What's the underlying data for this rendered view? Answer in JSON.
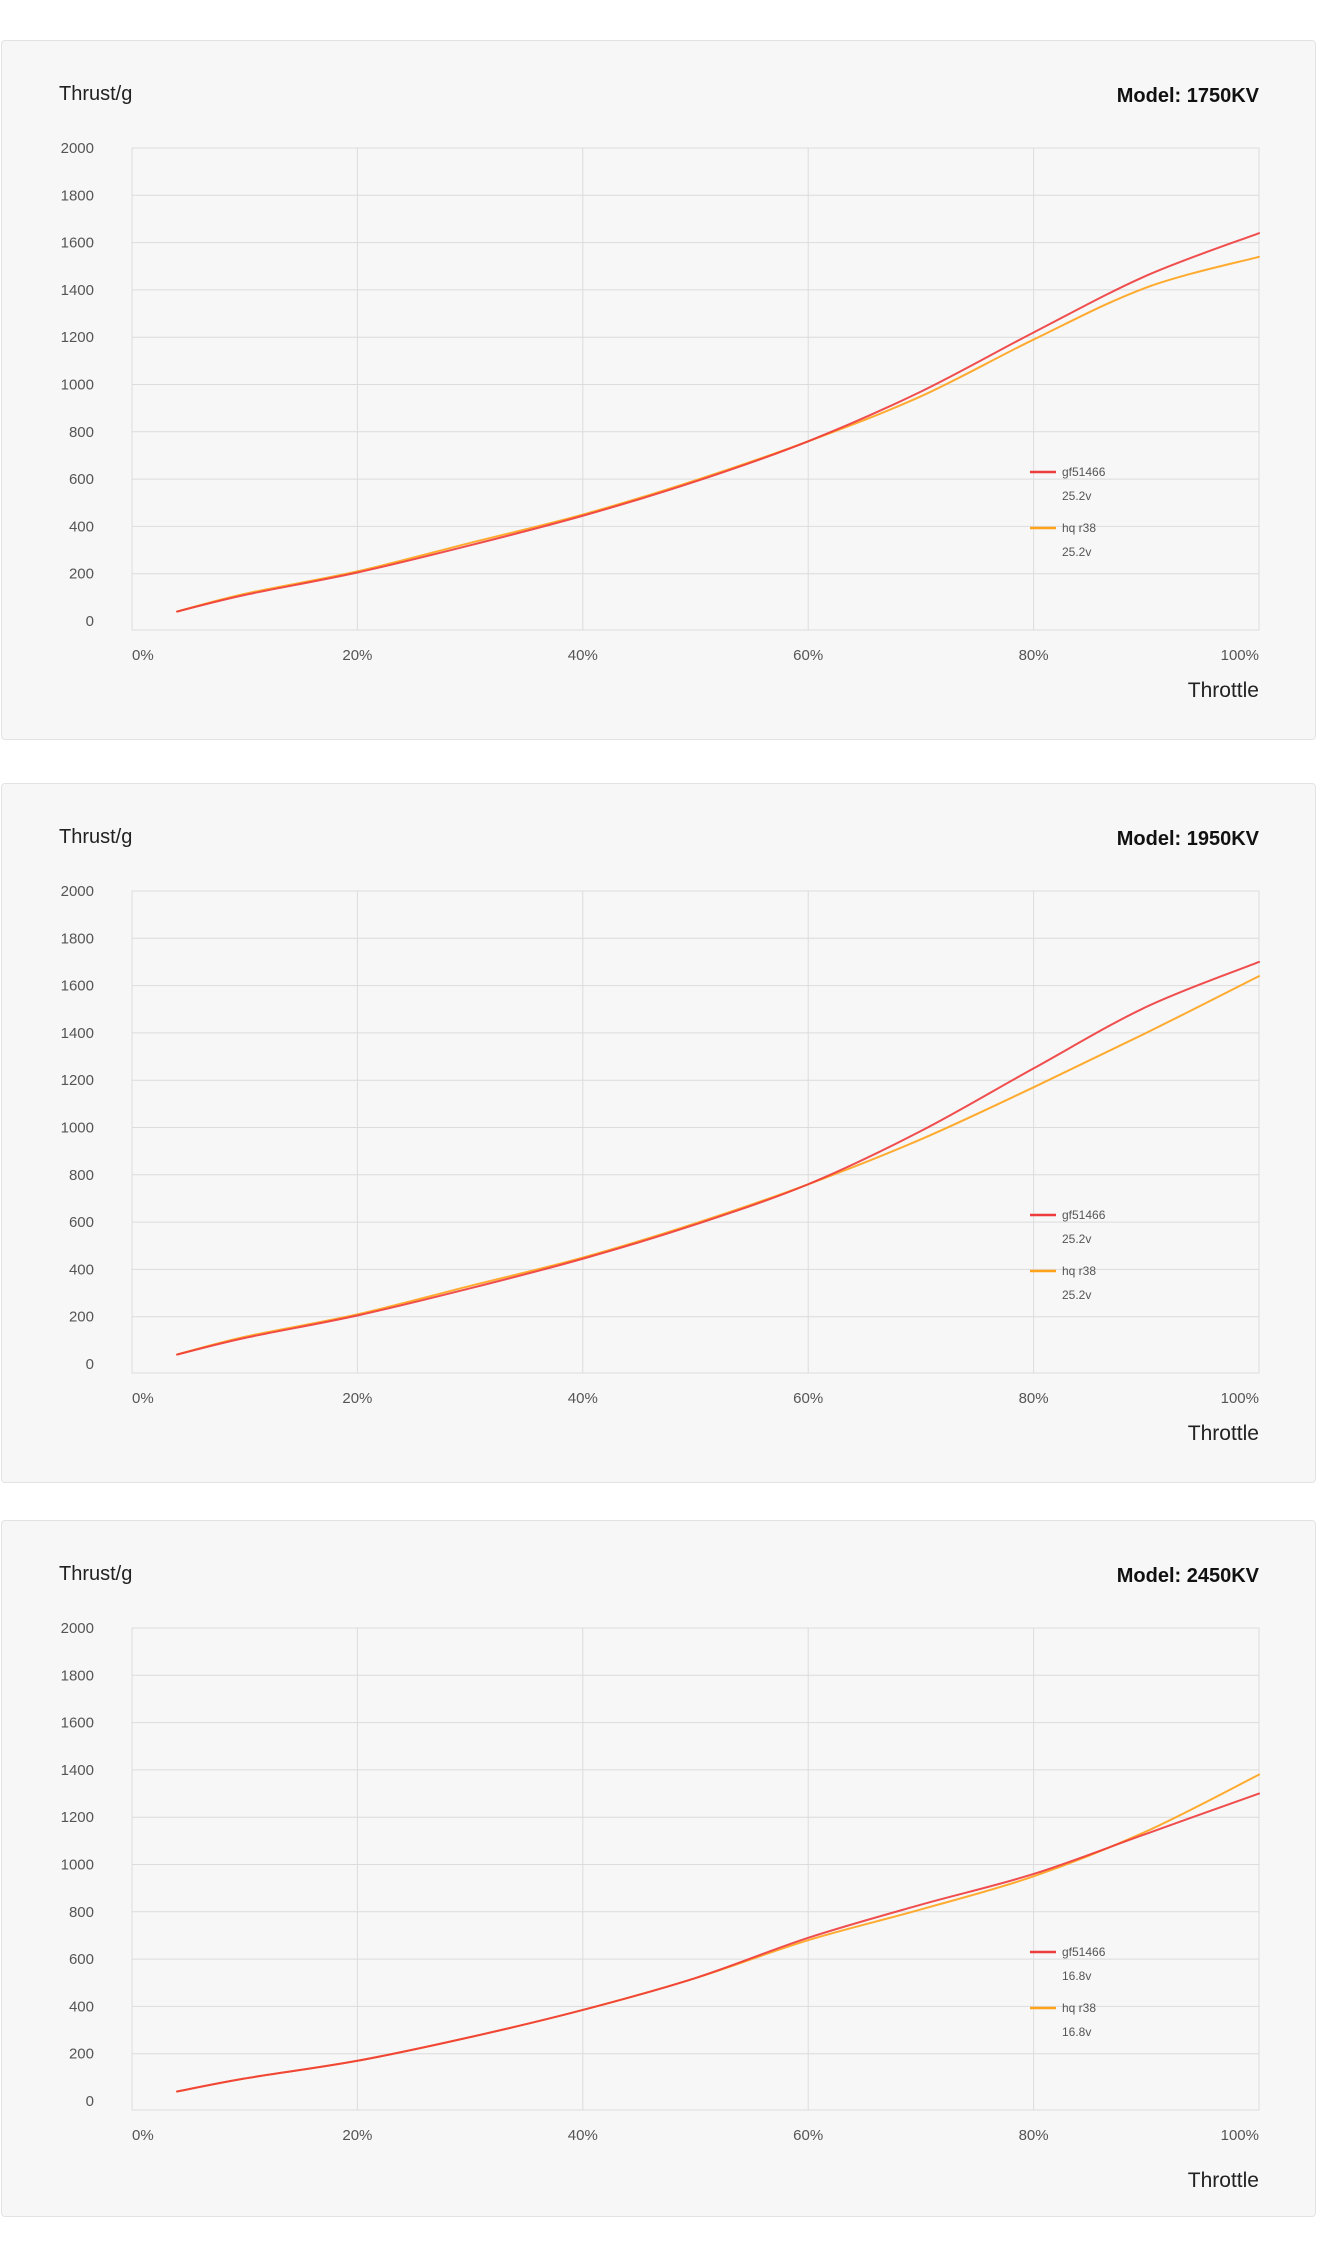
{
  "chart_data": [
    {
      "type": "line",
      "title": "Model: 1750KV",
      "ylabel": "Thrust/g",
      "xlabel": "Throttle",
      "x_ticks": [
        "0%",
        "20%",
        "40%",
        "60%",
        "80%",
        "100%"
      ],
      "y_ticks": [
        "0",
        "200",
        "400",
        "600",
        "800",
        "1000",
        "1200",
        "1400",
        "1600",
        "1800",
        "2000"
      ],
      "xlim": [
        0,
        100
      ],
      "ylim": [
        0,
        2000
      ],
      "grid": true,
      "legend": "right-center",
      "series": [
        {
          "name": "gf51466",
          "sub": "25.2v",
          "color": "#ee3b3b",
          "x": [
            4,
            10,
            20,
            30,
            40,
            50,
            60,
            70,
            80,
            90,
            100
          ],
          "y": [
            40,
            110,
            205,
            320,
            445,
            590,
            760,
            970,
            1220,
            1460,
            1640
          ]
        },
        {
          "name": "hq r38",
          "sub": "25.2v",
          "color": "#ffa21a",
          "x": [
            4,
            10,
            20,
            30,
            40,
            50,
            60,
            70,
            80,
            90,
            100
          ],
          "y": [
            40,
            115,
            210,
            330,
            450,
            595,
            760,
            950,
            1190,
            1410,
            1540
          ]
        }
      ]
    },
    {
      "type": "line",
      "title": "Model: 1950KV",
      "ylabel": "Thrust/g",
      "xlabel": "Throttle",
      "x_ticks": [
        "0%",
        "20%",
        "40%",
        "60%",
        "80%",
        "100%"
      ],
      "y_ticks": [
        "0",
        "200",
        "400",
        "600",
        "800",
        "1000",
        "1200",
        "1400",
        "1600",
        "1800",
        "2000"
      ],
      "xlim": [
        0,
        100
      ],
      "ylim": [
        0,
        2000
      ],
      "grid": true,
      "legend": "right-center",
      "series": [
        {
          "name": "gf51466",
          "sub": "25.2v",
          "color": "#ee3b3b",
          "x": [
            4,
            10,
            20,
            30,
            40,
            50,
            60,
            70,
            80,
            90,
            100
          ],
          "y": [
            40,
            110,
            205,
            320,
            445,
            590,
            760,
            985,
            1250,
            1510,
            1700
          ]
        },
        {
          "name": "hq r38",
          "sub": "25.2v",
          "color": "#ffa21a",
          "x": [
            4,
            10,
            20,
            30,
            40,
            50,
            60,
            70,
            80,
            90,
            100
          ],
          "y": [
            40,
            115,
            210,
            330,
            450,
            595,
            760,
            950,
            1170,
            1400,
            1640
          ]
        }
      ]
    },
    {
      "type": "line",
      "title": "Model: 2450KV",
      "ylabel": "Thrust/g",
      "xlabel": "Throttle",
      "x_ticks": [
        "0%",
        "20%",
        "40%",
        "60%",
        "80%",
        "100%"
      ],
      "y_ticks": [
        "0",
        "200",
        "400",
        "600",
        "800",
        "1000",
        "1200",
        "1400",
        "1600",
        "1800",
        "2000"
      ],
      "xlim": [
        0,
        100
      ],
      "ylim": [
        0,
        2000
      ],
      "grid": true,
      "legend": "right-center",
      "series": [
        {
          "name": "gf51466",
          "sub": "16.8v",
          "color": "#ee3b3b",
          "x": [
            4,
            10,
            20,
            30,
            40,
            50,
            60,
            70,
            80,
            90,
            100
          ],
          "y": [
            40,
            95,
            170,
            270,
            385,
            520,
            690,
            830,
            960,
            1130,
            1300
          ]
        },
        {
          "name": "hq r38",
          "sub": "16.8v",
          "color": "#ffa21a",
          "x": [
            4,
            10,
            20,
            30,
            40,
            50,
            60,
            70,
            80,
            90,
            100
          ],
          "y": [
            40,
            95,
            170,
            270,
            385,
            520,
            680,
            810,
            950,
            1140,
            1380
          ]
        }
      ]
    }
  ]
}
